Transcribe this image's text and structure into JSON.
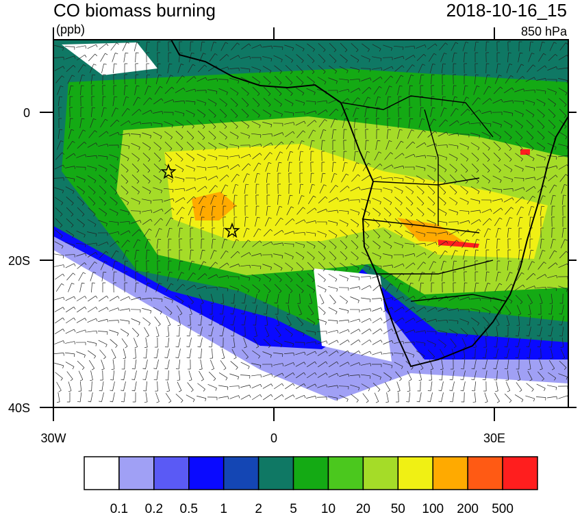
{
  "header": {
    "title": "CO biomass burning",
    "units": "(ppb)",
    "time": "2018-10-16_15",
    "level": "850 hPa"
  },
  "axes": {
    "y_labels": [
      "0",
      "20S",
      "40S"
    ],
    "x_labels": [
      "30W",
      "0",
      "30E"
    ]
  },
  "colorbar": {
    "colors": [
      "#ffffff",
      "#a0a0f5",
      "#5a5af5",
      "#0a0aff",
      "#1446b4",
      "#0f7864",
      "#14aa14",
      "#4bc81e",
      "#a5dc28",
      "#f0f014",
      "#ffaa00",
      "#ff5a14",
      "#ff1e1e"
    ],
    "levels": [
      0.1,
      0.2,
      0.5,
      1,
      2,
      5,
      10,
      20,
      50,
      100,
      200,
      500
    ]
  }
}
